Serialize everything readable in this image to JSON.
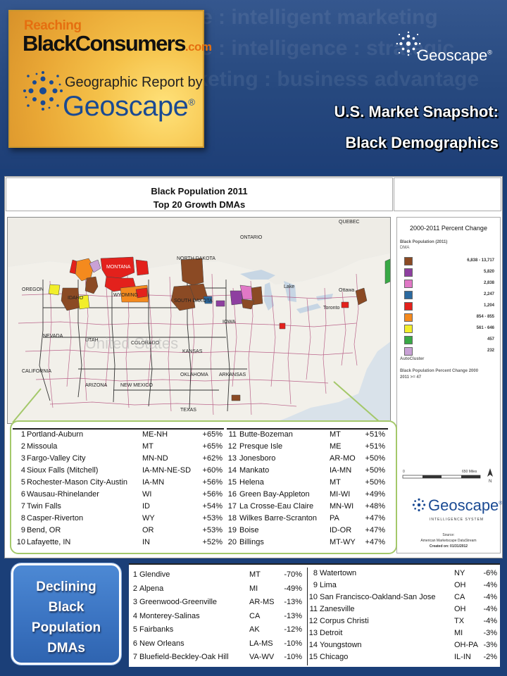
{
  "header": {
    "watermark_lines": [
      "nce : intelligent marketing",
      "age : intelligence : strategic",
      "arketing : business advantage"
    ],
    "logo_reaching": "Reaching",
    "logo_main": "BlackConsumers",
    "logo_com": ".com",
    "logo_report_by": "Geographic Report by",
    "logo_geoscape": "Geoscape",
    "logo_reg": "®",
    "top_brand": "Geoscape",
    "top_brand_reg": "®",
    "snapshot_line1": "U.S. Market Snapshot:",
    "snapshot_line2": "Black Demographics"
  },
  "map": {
    "title_line1": "Black Population 2011",
    "title_line2": "Top 20 Growth DMAs",
    "place_labels": [
      "ONTARIO",
      "QUEBEC",
      "MONTANA",
      "NORTH DAKOTA",
      "SOUTH DAKOTA",
      "WYOMING",
      "IDAHO",
      "OREGON",
      "NEVADA",
      "UTAH",
      "COLORADO",
      "KANSAS",
      "CALIFORNIA",
      "ARIZONA",
      "NEW MEXICO",
      "OKLAHOMA",
      "ARKANSAS",
      "TEXAS",
      "IOWA",
      "Ottawa",
      "Toronto",
      "Lake",
      "United States"
    ]
  },
  "legend": {
    "title": "2000-2011 Percent Change",
    "sub1": "Black Population (2011)",
    "sub2": "DMA",
    "rows": [
      {
        "color": "#8b4a24",
        "label": "6,838  -  13,717"
      },
      {
        "color": "#8e3fa0",
        "label": "5,820"
      },
      {
        "color": "#e078c6",
        "label": "2,838"
      },
      {
        "color": "#2c6aa0",
        "label": "2,247"
      },
      {
        "color": "#e3211c",
        "label": "1,204"
      },
      {
        "color": "#f48a1e",
        "label": "854  -  855"
      },
      {
        "color": "#f2ee2a",
        "label": "561  -  646"
      },
      {
        "color": "#39a845",
        "label": "457"
      },
      {
        "color": "#c9a1d6",
        "label": "232"
      }
    ],
    "note1": "AutoCluster",
    "note2": "Black Population Percent Change 2000",
    "note3": "2011 >= 47",
    "scale_zero": "0",
    "scale_max": "650 Miles",
    "north": "N",
    "geo_name": "Geoscape",
    "geo_reg": "®",
    "geo_sub": "INTELLIGENCE SYSTEM",
    "source1": "Source:",
    "source2": "American Marketscape DataStream",
    "source3": "Created on: 01/31/2012"
  },
  "growth": {
    "left": [
      {
        "rank": "1",
        "name": "Portland-Auburn",
        "state": "ME-NH",
        "pct": "+65%"
      },
      {
        "rank": "2",
        "name": "Missoula",
        "state": "MT",
        "pct": "+65%"
      },
      {
        "rank": "3",
        "name": "Fargo-Valley City",
        "state": "MN-ND",
        "pct": "+62%"
      },
      {
        "rank": "4",
        "name": "Sioux Falls (Mitchell)",
        "state": "IA-MN-NE-SD",
        "pct": "+60%"
      },
      {
        "rank": "5",
        "name": "Rochester-Mason City-Austin",
        "state": "IA-MN",
        "pct": "+56%"
      },
      {
        "rank": "6",
        "name": "Wausau-Rhinelander",
        "state": "WI",
        "pct": "+56%"
      },
      {
        "rank": "7",
        "name": "Twin Falls",
        "state": "ID",
        "pct": "+54%"
      },
      {
        "rank": "8",
        "name": "Casper-Riverton",
        "state": "WY",
        "pct": "+53%"
      },
      {
        "rank": "9",
        "name": "Bend,  OR",
        "state": "OR",
        "pct": "+53%"
      },
      {
        "rank": "10",
        "name": "Lafayette,  IN",
        "state": "IN",
        "pct": "+52%"
      }
    ],
    "right": [
      {
        "rank": "11",
        "name": "Butte-Bozeman",
        "state": "MT",
        "pct": "+51%"
      },
      {
        "rank": "12",
        "name": "Presque Isle",
        "state": "ME",
        "pct": "+51%"
      },
      {
        "rank": "13",
        "name": "Jonesboro",
        "state": "AR-MO",
        "pct": "+50%"
      },
      {
        "rank": "14",
        "name": "Mankato",
        "state": "IA-MN",
        "pct": "+50%"
      },
      {
        "rank": "15",
        "name": "Helena",
        "state": "MT",
        "pct": "+50%"
      },
      {
        "rank": "16",
        "name": "Green Bay-Appleton",
        "state": "MI-WI",
        "pct": "+49%"
      },
      {
        "rank": "17",
        "name": "La Crosse-Eau Claire",
        "state": "MN-WI",
        "pct": "+48%"
      },
      {
        "rank": "18",
        "name": "Wilkes Barre-Scranton",
        "state": "PA",
        "pct": "+47%"
      },
      {
        "rank": "19",
        "name": "Boise",
        "state": "ID-OR",
        "pct": "+47%"
      },
      {
        "rank": "20",
        "name": "Billings",
        "state": "MT-WY",
        "pct": "+47%"
      }
    ]
  },
  "declining": {
    "button_lines": [
      "Declining",
      "Black",
      "Population",
      "DMAs"
    ],
    "left": [
      {
        "rank": "1",
        "name": "Glendive",
        "state": "MT",
        "pct": "-70%"
      },
      {
        "rank": "2",
        "name": "Alpena",
        "state": "MI",
        "pct": "-49%"
      },
      {
        "rank": "3",
        "name": "Greenwood-Greenville",
        "state": "AR-MS",
        "pct": "-13%"
      },
      {
        "rank": "4",
        "name": "Monterey-Salinas",
        "state": "CA",
        "pct": "-13%"
      },
      {
        "rank": "5",
        "name": "Fairbanks",
        "state": "AK",
        "pct": "-12%"
      },
      {
        "rank": "6",
        "name": "New Orleans",
        "state": "LA-MS",
        "pct": "-10%"
      },
      {
        "rank": "7",
        "name": "Bluefield-Beckley-Oak Hill",
        "state": "VA-WV",
        "pct": "-10%"
      }
    ],
    "right": [
      {
        "rank": "8",
        "name": "Watertown",
        "state": "NY",
        "pct": "-6%"
      },
      {
        "rank": "9",
        "name": "Lima",
        "state": "OH",
        "pct": "-4%"
      },
      {
        "rank": "10",
        "name": "San Francisco-Oakland-San Jose",
        "state": "CA",
        "pct": "-4%"
      },
      {
        "rank": "11",
        "name": "Zanesville",
        "state": "OH",
        "pct": "-4%"
      },
      {
        "rank": "12",
        "name": "Corpus Christi",
        "state": "TX",
        "pct": "-4%"
      },
      {
        "rank": "13",
        "name": "Detroit",
        "state": "MI",
        "pct": "-3%"
      },
      {
        "rank": "14",
        "name": "Youngstown",
        "state": "OH-PA",
        "pct": "-3%"
      },
      {
        "rank": "15",
        "name": "Chicago",
        "state": "IL-IN",
        "pct": "-2%"
      }
    ]
  }
}
